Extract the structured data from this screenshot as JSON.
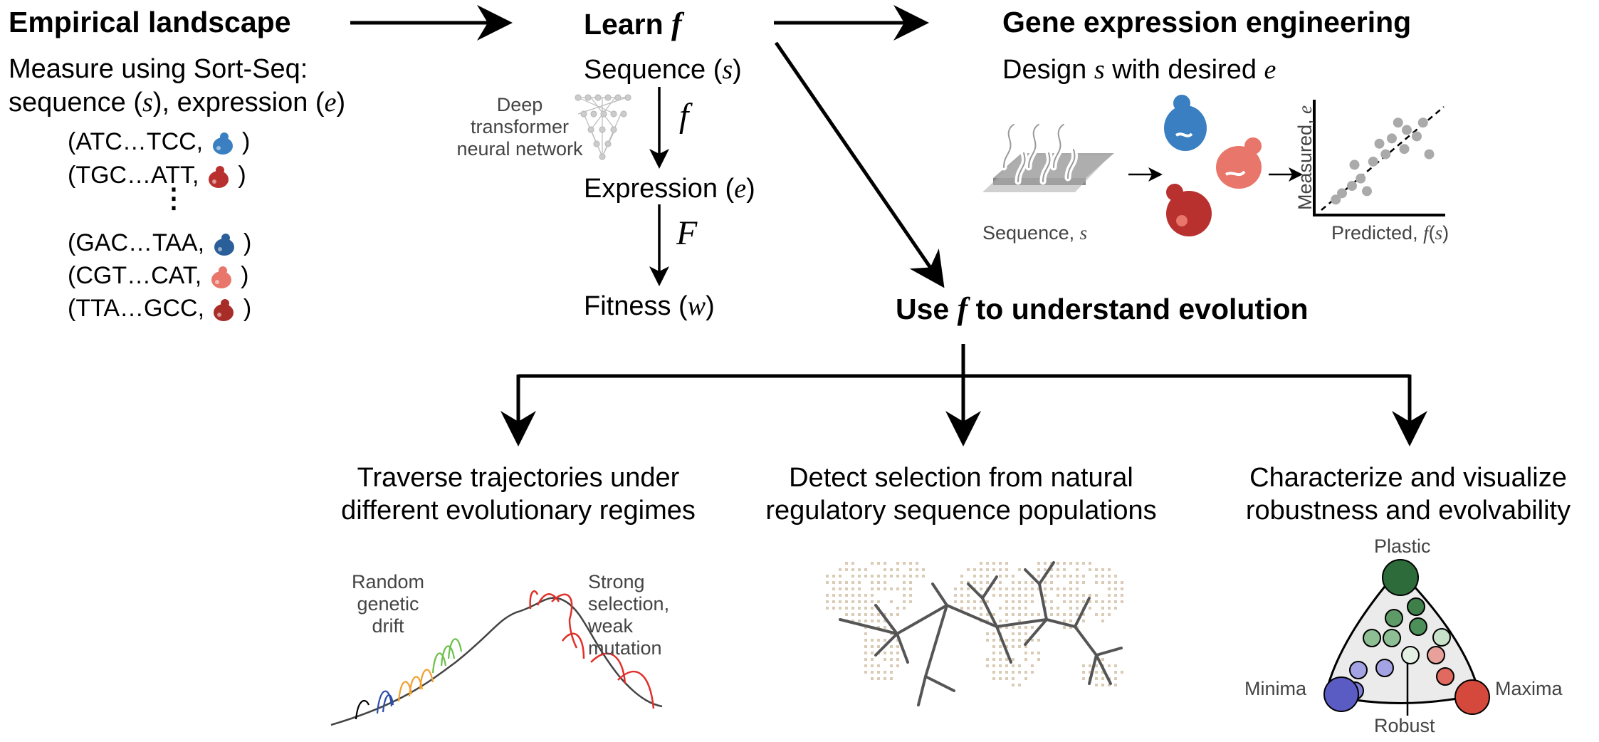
{
  "empirical": {
    "title": "Empirical landscape",
    "line1": "Measure using Sort-Seq:",
    "line2_a": "sequence (",
    "line2_s": "s",
    "line2_b": "), expression (",
    "line2_e": "e",
    "line2_c": ")",
    "pairs": [
      {
        "seq": "(ATC…TCC,",
        "color": "#3a7fc1"
      },
      {
        "seq": "(TGC…ATT,",
        "color": "#b8312f"
      },
      {
        "seq": "(GAC…TAA,",
        "color": "#2b5f99"
      },
      {
        "seq": "(CGT…CAT,",
        "color": "#e8766a"
      },
      {
        "seq": "(TTA…GCC,",
        "color": "#a82c27"
      }
    ],
    "close_paren": ")",
    "ellipsis": "⋮"
  },
  "learn": {
    "title_a": "Learn ",
    "title_f": "f",
    "sequence_a": "Sequence (",
    "sequence_s": "s",
    "sequence_b": ")",
    "expression_a": "Expression (",
    "expression_e": "e",
    "expression_b": ")",
    "fitness_a": "Fitness (",
    "fitness_w": "w",
    "fitness_b": ")",
    "f_label": "f",
    "F_label": "F",
    "network_label": [
      "Deep",
      "transformer",
      "neural network"
    ]
  },
  "engineering": {
    "title": "Gene expression engineering",
    "subtitle_a": "Design ",
    "subtitle_s": "s",
    "subtitle_b": " with desired ",
    "subtitle_e": "e",
    "seq_caption_a": "Sequence, ",
    "seq_caption_s": "s",
    "x_axis_a": "Predicted, ",
    "x_axis_f": "f",
    "x_axis_b": "(",
    "x_axis_s": "s",
    "x_axis_c": ")",
    "y_axis_a": "Measured, ",
    "y_axis_e": "e"
  },
  "evolution": {
    "title_a": "Use ",
    "title_f": "f",
    "title_b": " to understand evolution"
  },
  "panels": {
    "traverse": [
      "Traverse trajectories under",
      "different evolutionary regimes"
    ],
    "detect": [
      "Detect selection from natural",
      "regulatory sequence populations"
    ],
    "characterize": [
      "Characterize and visualize",
      "robustness and evolvability"
    ]
  },
  "traverse_labels": {
    "drift": [
      "Random",
      "genetic",
      "drift"
    ],
    "strong": [
      "Strong",
      "selection,",
      "weak",
      "mutation"
    ]
  },
  "triangle_labels": {
    "top": "Plastic",
    "left": "Minima",
    "right": "Maxima",
    "bottom": "Robust"
  },
  "colors": {
    "blue": "#3a7fc1",
    "red": "#b8312f",
    "salmon": "#e8766a",
    "green_dark": "#2e6b3a",
    "purple": "#5b5bc4",
    "red_node": "#d5483c",
    "drift_green": "#6cc04a",
    "drift_orange": "#f0a030",
    "drift_blue": "#2a4fa8",
    "selection_red": "#e0302a"
  },
  "chart_data": {
    "type": "scatter",
    "xlabel": "Predicted, f(s)",
    "ylabel": "Measured, e",
    "points": [
      [
        0.15,
        0.12
      ],
      [
        0.2,
        0.18
      ],
      [
        0.28,
        0.25
      ],
      [
        0.35,
        0.32
      ],
      [
        0.3,
        0.45
      ],
      [
        0.45,
        0.48
      ],
      [
        0.55,
        0.55
      ],
      [
        0.5,
        0.65
      ],
      [
        0.6,
        0.7
      ],
      [
        0.7,
        0.6
      ],
      [
        0.72,
        0.78
      ],
      [
        0.8,
        0.72
      ],
      [
        0.85,
        0.85
      ],
      [
        0.9,
        0.55
      ],
      [
        0.4,
        0.2
      ],
      [
        0.65,
        0.85
      ]
    ]
  }
}
